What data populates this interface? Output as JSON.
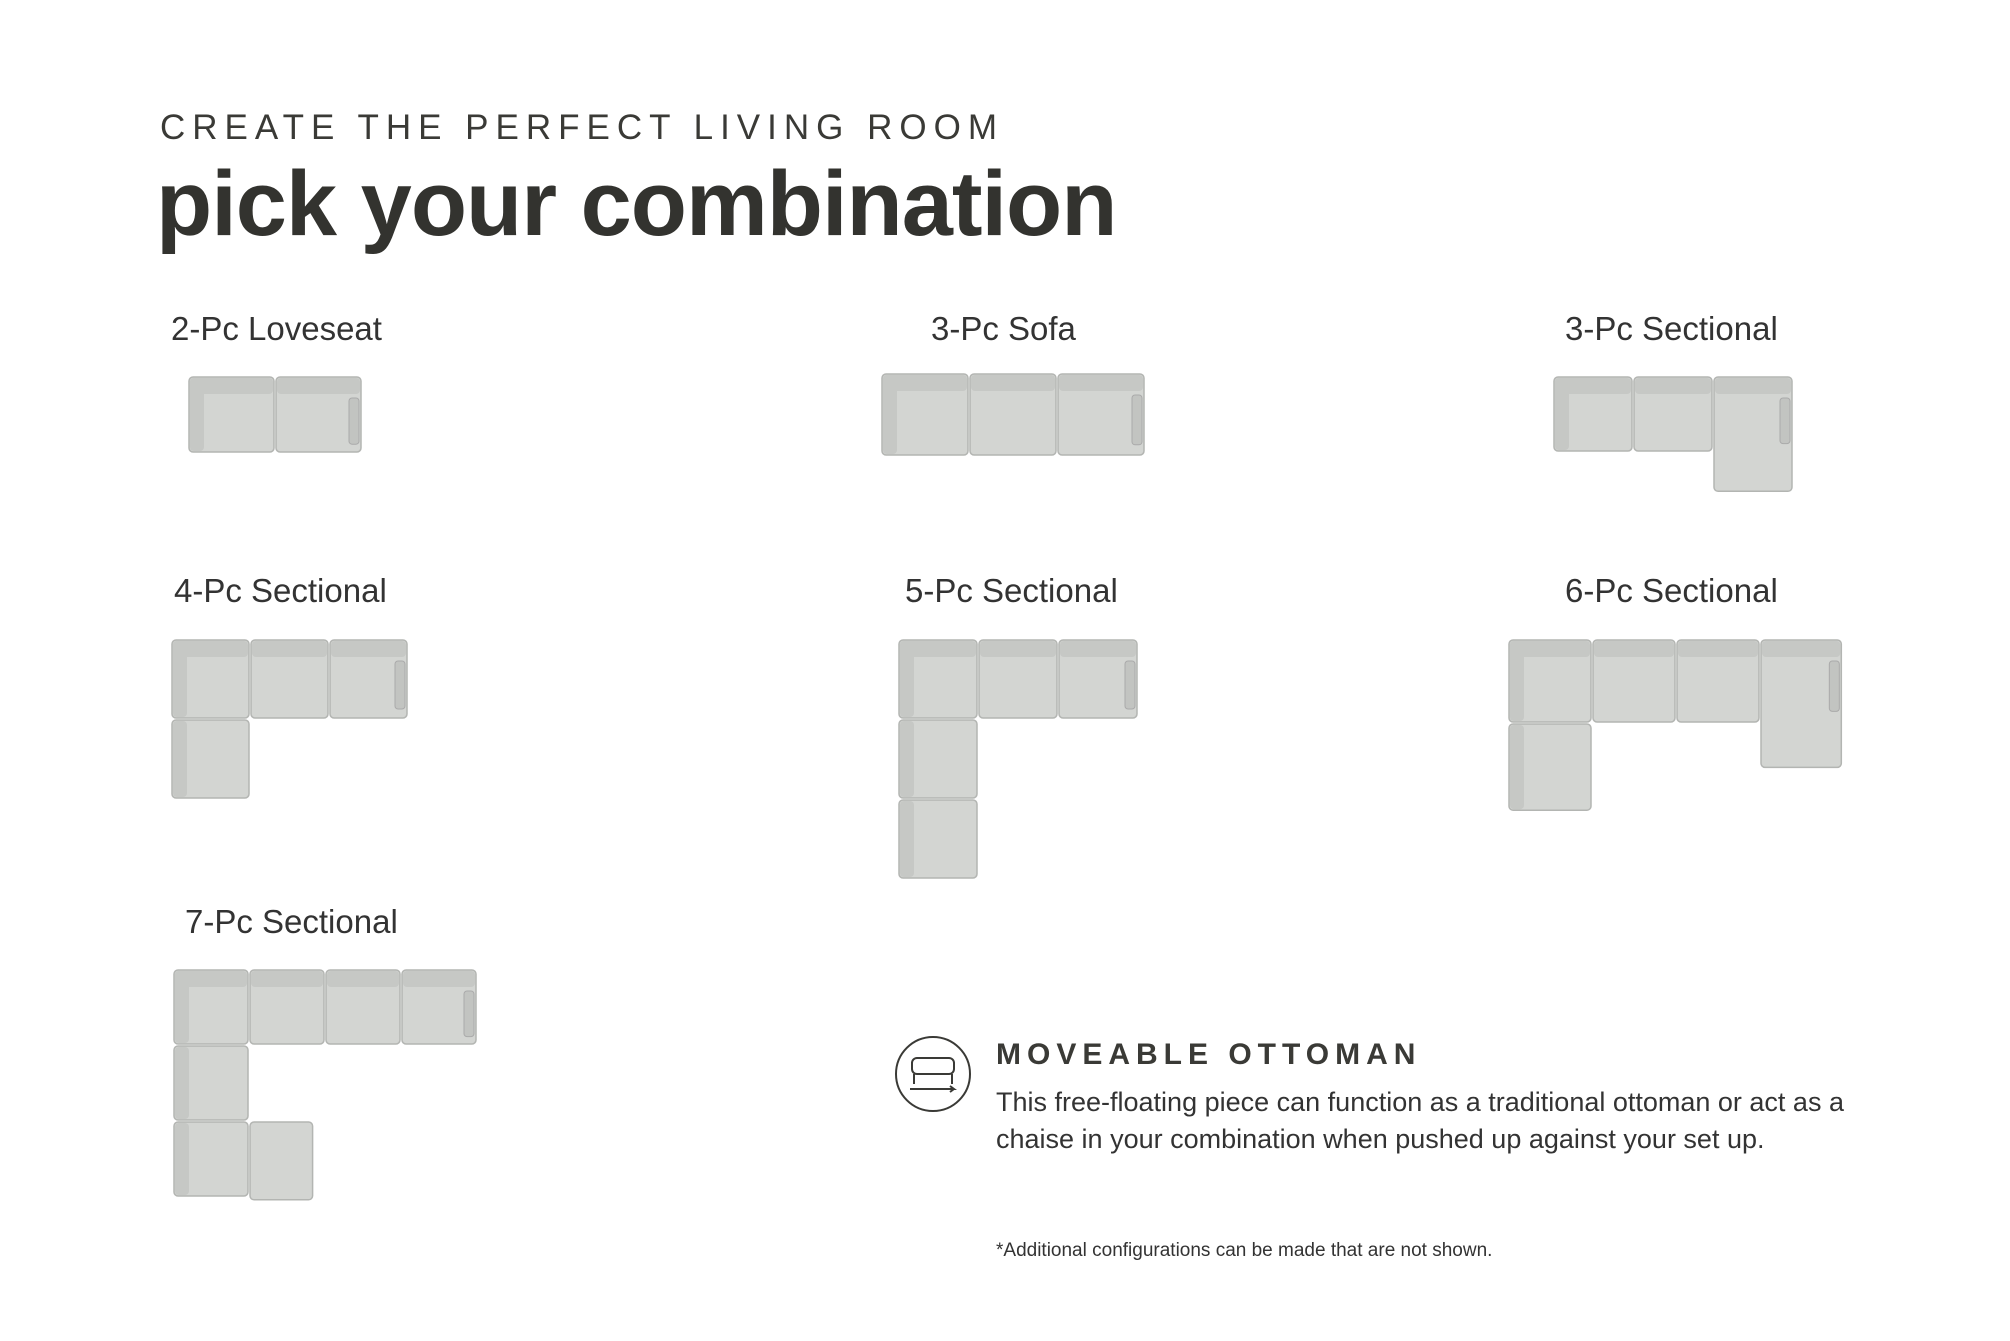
{
  "header": {
    "eyebrow": "CREATE THE PERFECT LIVING ROOM",
    "title": "pick your combination"
  },
  "configurations": [
    "2-Pc Loveseat",
    "3-Pc Sofa",
    "3-Pc Sectional",
    "4-Pc Sectional",
    "5-Pc Sectional",
    "6-Pc Sectional",
    "7-Pc Sectional"
  ],
  "ottoman": {
    "title": "MOVEABLE OTTOMAN",
    "description": "This free-floating piece can function as a traditional ottoman or act as a chaise in your combination when pushed up against your set up."
  },
  "footnote": "*Additional configurations can be made that are not shown."
}
